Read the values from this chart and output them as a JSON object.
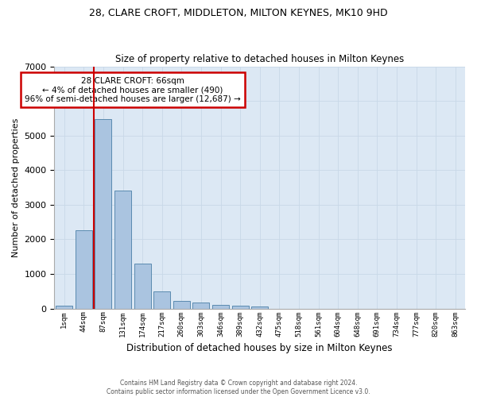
{
  "title": "28, CLARE CROFT, MIDDLETON, MILTON KEYNES, MK10 9HD",
  "subtitle": "Size of property relative to detached houses in Milton Keynes",
  "xlabel": "Distribution of detached houses by size in Milton Keynes",
  "ylabel": "Number of detached properties",
  "bin_labels": [
    "1sqm",
    "44sqm",
    "87sqm",
    "131sqm",
    "174sqm",
    "217sqm",
    "260sqm",
    "303sqm",
    "346sqm",
    "389sqm",
    "432sqm",
    "475sqm",
    "518sqm",
    "561sqm",
    "604sqm",
    "648sqm",
    "691sqm",
    "734sqm",
    "777sqm",
    "820sqm",
    "863sqm"
  ],
  "bar_values": [
    75,
    2270,
    5470,
    3400,
    1300,
    490,
    210,
    165,
    100,
    75,
    55,
    0,
    0,
    0,
    0,
    0,
    0,
    0,
    0,
    0,
    0
  ],
  "bar_color": "#aac4e0",
  "bar_edge_color": "#5a8ab0",
  "property_line_x": 1.52,
  "annotation_text": "28 CLARE CROFT: 66sqm\n← 4% of detached houses are smaller (490)\n96% of semi-detached houses are larger (12,687) →",
  "annotation_box_color": "#ffffff",
  "annotation_box_edge": "#cc0000",
  "red_line_color": "#cc0000",
  "grid_color": "#c8d8e8",
  "bg_color": "#dce8f4",
  "fig_color": "#ffffff",
  "ylim": [
    0,
    7000
  ],
  "footer1": "Contains HM Land Registry data © Crown copyright and database right 2024.",
  "footer2": "Contains public sector information licensed under the Open Government Licence v3.0."
}
